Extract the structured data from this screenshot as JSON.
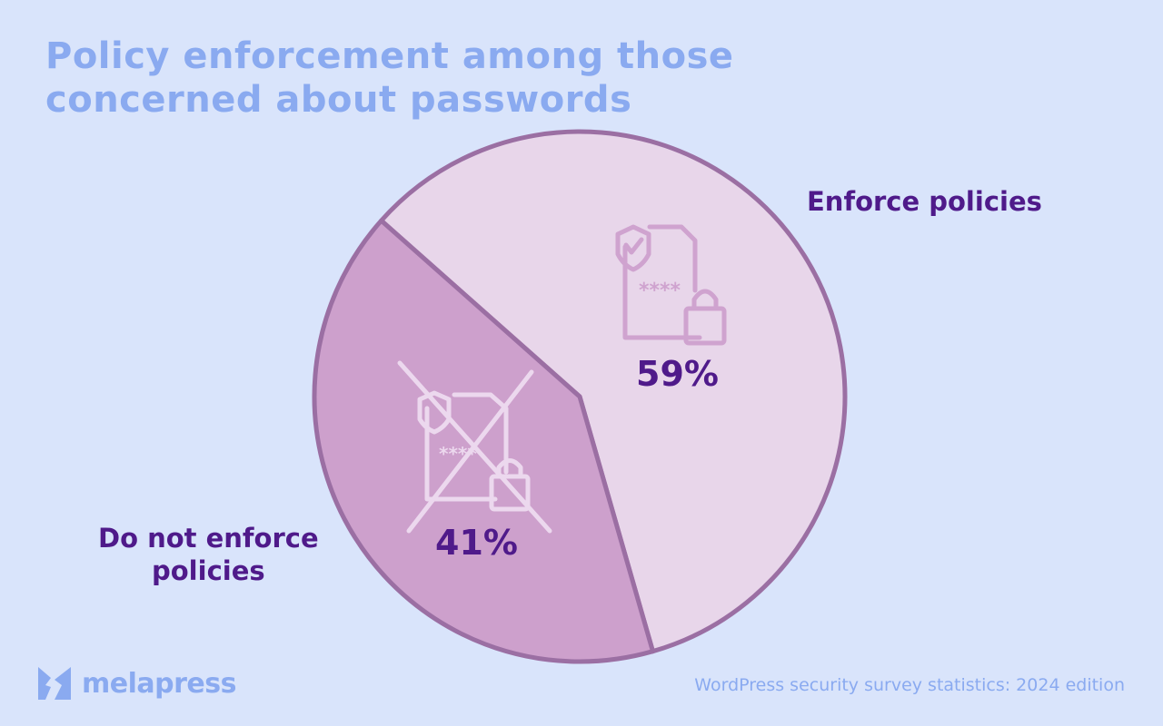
{
  "title": [
    "Policy enforcement among those",
    "concerned about passwords"
  ],
  "chart_data": {
    "type": "pie",
    "title": "Policy enforcement among those concerned about passwords",
    "categories": [
      "Enforce policies",
      "Do not enforce policies"
    ],
    "values": [
      59,
      41
    ],
    "data_labels": [
      "59%",
      "41%"
    ],
    "colors": [
      "#e8d6ea",
      "#cda0cc"
    ],
    "stroke_color": "#9b6fa3",
    "legend": "direct-labels"
  },
  "labels": {
    "enforce": "Enforce policies",
    "not_enforce_line1": "Do not enforce",
    "not_enforce_line2": "policies"
  },
  "brand": {
    "name": "melapress",
    "color": "#8aaaf0"
  },
  "footer": "WordPress security survey statistics: 2024 edition",
  "colors": {
    "background": "#d9e4fb",
    "title": "#8aaaf0",
    "label": "#4f1a8a"
  }
}
